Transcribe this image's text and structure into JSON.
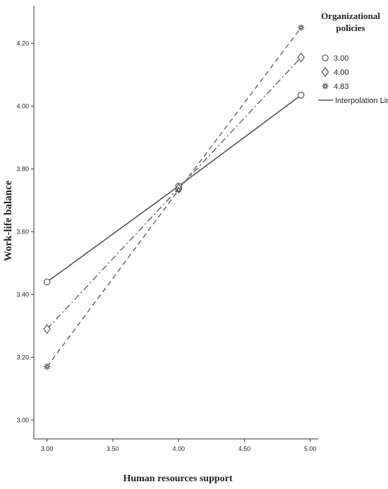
{
  "chart_data": {
    "type": "line",
    "xlabel": "Human resources support",
    "ylabel": "Work-life balance",
    "x_ticks": [
      "3.00",
      "3.50",
      "4.00",
      "4.50",
      "5.00"
    ],
    "y_ticks": [
      "3.00",
      "3.20",
      "3.40",
      "3.60",
      "3.80",
      "4.00",
      "4.20"
    ],
    "xlim": [
      2.9,
      5.06
    ],
    "ylim": [
      2.94,
      4.32
    ],
    "grid": false,
    "legend": {
      "title_lines": [
        "Organizational",
        "policies"
      ],
      "position": "top-right",
      "interpolation_label": "Interpolation Line"
    },
    "series": [
      {
        "name": "3.00",
        "marker": "circle",
        "dash": "solid",
        "points": [
          [
            3.0,
            3.44
          ],
          [
            4.0,
            3.745
          ],
          [
            4.93,
            4.035
          ]
        ]
      },
      {
        "name": "4.00",
        "marker": "diamond",
        "dash": "dashdot",
        "points": [
          [
            3.0,
            3.29
          ],
          [
            4.0,
            3.738
          ],
          [
            4.93,
            4.155
          ]
        ]
      },
      {
        "name": "4.83",
        "marker": "star",
        "dash": "dashed",
        "points": [
          [
            3.0,
            3.17
          ],
          [
            4.0,
            3.733
          ],
          [
            4.93,
            4.25
          ]
        ]
      }
    ],
    "colors": {
      "line": "#555555",
      "axis": "#333333"
    }
  }
}
